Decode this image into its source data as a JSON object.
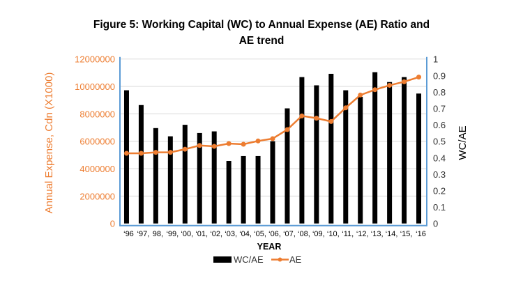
{
  "chart_data": {
    "type": "bar+line",
    "title_line1": "Figure 5: Working Capital (WC) to Annual Expense (AE) Ratio and",
    "title_line2": "AE trend",
    "xlabel": "YEAR",
    "ylabel_left": "Annual Expense, Cdn (X1000)",
    "ylabel_right": "WC/AE",
    "ylim_left": [
      0,
      12000000
    ],
    "ylim_right": [
      0,
      1
    ],
    "yticks_left": [
      "0",
      "2000000",
      "4000000",
      "6000000",
      "8000000",
      "10000000",
      "12000000"
    ],
    "yticks_right": [
      "0",
      "0.1",
      "0.2",
      "0.3",
      "0.4",
      "0.5",
      "0.6",
      "0.7",
      "0.8",
      "0.9",
      "1"
    ],
    "categories": [
      "‘96",
      "‘97,",
      "98,",
      "‘99,",
      "‘00,",
      "‘01,",
      "‘02,",
      "‘03,",
      "‘04,",
      "‘05,",
      "‘06,",
      "‘07,",
      "‘08,",
      "‘09,",
      "‘10,",
      "‘11,",
      "‘12,",
      "‘13,",
      "‘14,",
      "‘15,",
      "‘16"
    ],
    "grid": true,
    "legend_position": "bottom",
    "colors": {
      "bar": "#000000",
      "line": "#ED7D31",
      "left_axis": "#ED7D31",
      "axis_line": "#5B9BD5",
      "grid": "#D9D9D9"
    },
    "series": [
      {
        "name": "WC/AE",
        "type": "bar",
        "axis": "right",
        "values": [
          0.81,
          0.72,
          0.58,
          0.53,
          0.6,
          0.55,
          0.56,
          0.38,
          0.41,
          0.41,
          0.5,
          0.7,
          0.89,
          0.84,
          0.91,
          0.81,
          0.77,
          0.92,
          0.86,
          0.89,
          0.79
        ]
      },
      {
        "name": "AE",
        "type": "line",
        "axis": "left",
        "values": [
          5120000,
          5120000,
          5190000,
          5190000,
          5420000,
          5690000,
          5630000,
          5830000,
          5780000,
          6020000,
          6190000,
          6850000,
          7850000,
          7680000,
          7440000,
          8440000,
          9370000,
          9760000,
          10080000,
          10340000,
          10680000
        ]
      }
    ]
  }
}
